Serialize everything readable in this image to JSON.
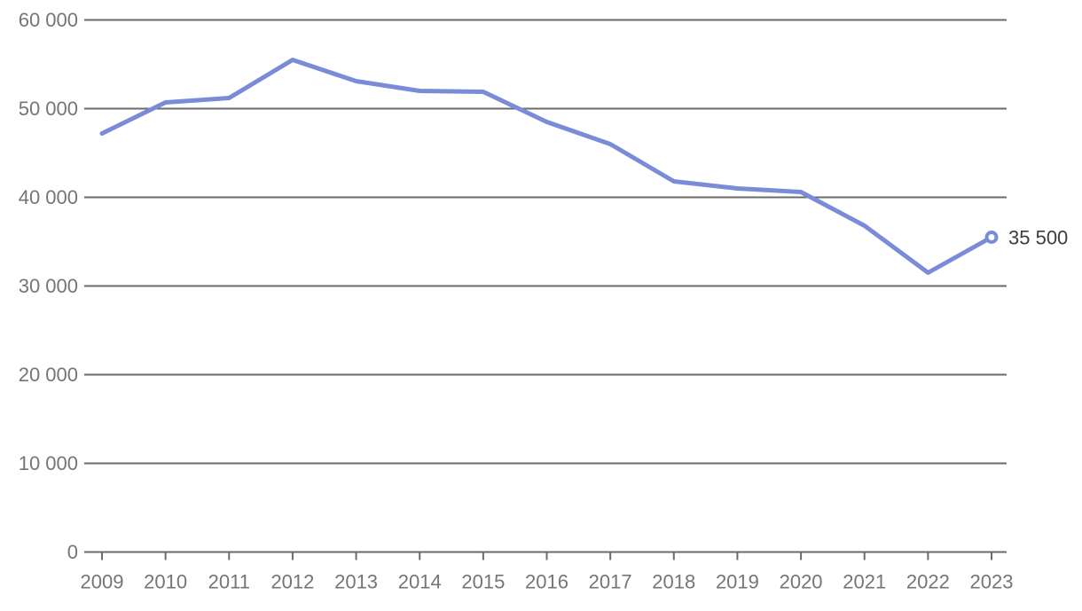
{
  "colors": {
    "background": "#ffffff",
    "line": "#7a8cd8",
    "marker_fill": "#ffffff",
    "grid": "#6b6b6b",
    "axis": "#6b6b6b",
    "tick_label": "#757575",
    "annotation": "#3c3c3c"
  },
  "annotation": {
    "end_label": "35 500"
  },
  "chart_data": {
    "type": "line",
    "categories": [
      "2009",
      "2010",
      "2011",
      "2012",
      "2013",
      "2014",
      "2015",
      "2016",
      "2017",
      "2018",
      "2019",
      "2020",
      "2021",
      "2022",
      "2023"
    ],
    "series": [
      {
        "name": "value",
        "values": [
          47200,
          50700,
          51200,
          55500,
          53100,
          52000,
          51900,
          48500,
          46000,
          41800,
          41000,
          40600,
          36800,
          31500,
          35500
        ],
        "marker_on_last_point": true,
        "last_point_label": "35 500"
      }
    ],
    "xlabel": "",
    "ylabel": "",
    "ylim": [
      0,
      60000
    ],
    "y_ticks": [
      0,
      10000,
      20000,
      30000,
      40000,
      50000,
      60000
    ],
    "y_tick_labels": [
      "0",
      "10 000",
      "20 000",
      "30 000",
      "40 000",
      "50 000",
      "60 000"
    ],
    "grid": "horizontal-only",
    "legend": "none"
  }
}
